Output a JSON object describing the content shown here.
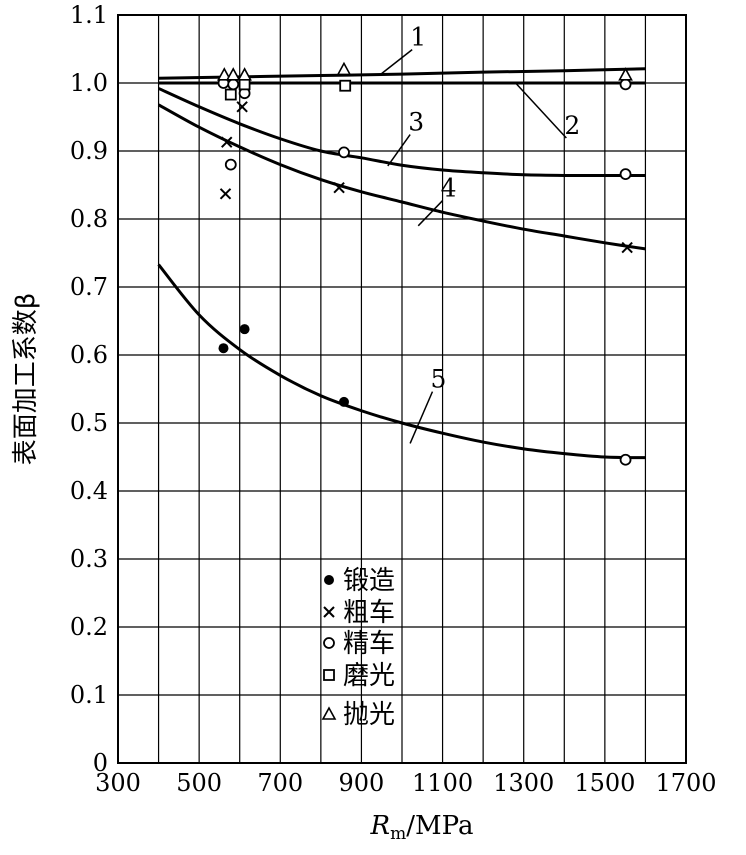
{
  "chart_data": {
    "type": "line",
    "ylabel": "表面加工系数β",
    "xlabel_main": "R",
    "xlabel_sub": "m",
    "xlabel_unit": "/MPa",
    "xlim": [
      300,
      1700
    ],
    "ylim": [
      0,
      1.1
    ],
    "grid": true,
    "x_ticks": [
      300,
      500,
      700,
      900,
      1100,
      1300,
      1500,
      1700
    ],
    "y_ticks": [
      0,
      0.1,
      0.2,
      0.3,
      0.4,
      0.5,
      0.6,
      0.7,
      0.8,
      0.9,
      1.0,
      1.1
    ],
    "x_tick_labels": [
      "300",
      "500",
      "700",
      "900",
      "1100",
      "1300",
      "1500",
      "1700"
    ],
    "y_tick_labels": [
      "0",
      "0.1",
      "0.2",
      "0.3",
      "0.4",
      "0.5",
      "0.6",
      "0.7",
      "0.8",
      "0.9",
      "1.0",
      "1.1"
    ],
    "series": [
      {
        "name": "1",
        "x": [
          400,
          600,
          800,
          1000,
          1200,
          1400,
          1600
        ],
        "y": [
          1.007,
          1.009,
          1.011,
          1.013,
          1.016,
          1.018,
          1.021
        ],
        "label_at": [
          1030,
          1.055
        ],
        "leader_to": [
          950,
          1.014
        ]
      },
      {
        "name": "2",
        "x": [
          400,
          600,
          800,
          1000,
          1200,
          1400,
          1600
        ],
        "y": [
          1.0,
          1.0,
          1.0,
          1.0,
          1.0,
          1.0,
          1.0
        ],
        "label_at": [
          1410,
          0.925
        ],
        "leader_to": [
          1280,
          1.0
        ]
      },
      {
        "name": "3",
        "x": [
          400,
          500,
          600,
          700,
          800,
          900,
          1000,
          1100,
          1200,
          1300,
          1400,
          1500,
          1600
        ],
        "y": [
          0.992,
          0.965,
          0.94,
          0.918,
          0.9,
          0.89,
          0.879,
          0.872,
          0.868,
          0.865,
          0.864,
          0.864,
          0.864
        ],
        "label_at": [
          1025,
          0.93
        ],
        "leader_to": [
          965,
          0.878
        ]
      },
      {
        "name": "4",
        "x": [
          400,
          500,
          600,
          700,
          800,
          900,
          1000,
          1100,
          1200,
          1300,
          1400,
          1500,
          1600
        ],
        "y": [
          0.968,
          0.935,
          0.906,
          0.88,
          0.858,
          0.84,
          0.825,
          0.81,
          0.797,
          0.785,
          0.775,
          0.765,
          0.756
        ],
        "label_at": [
          1105,
          0.833
        ],
        "leader_to": [
          1040,
          0.79
        ]
      },
      {
        "name": "5",
        "x": [
          400,
          500,
          600,
          700,
          800,
          900,
          1000,
          1100,
          1200,
          1300,
          1400,
          1500,
          1600
        ],
        "y": [
          0.733,
          0.659,
          0.608,
          0.57,
          0.54,
          0.518,
          0.5,
          0.485,
          0.472,
          0.462,
          0.455,
          0.45,
          0.449
        ],
        "label_at": [
          1080,
          0.552
        ],
        "leader_to": [
          1020,
          0.47
        ]
      }
    ],
    "markers": [
      {
        "name": "锻造",
        "symbol": "filled-circle",
        "points": [
          [
            560,
            0.61
          ],
          [
            612,
            0.638
          ],
          [
            857,
            0.531
          ]
        ]
      },
      {
        "name": "粗车",
        "symbol": "cross",
        "points": [
          [
            565,
            0.837
          ],
          [
            568,
            0.913
          ],
          [
            606,
            0.965
          ],
          [
            845,
            0.846
          ],
          [
            1555,
            0.758
          ]
        ]
      },
      {
        "name": "精车",
        "symbol": "open-circle",
        "points": [
          [
            560,
            1.0
          ],
          [
            578,
            0.88
          ],
          [
            584,
            0.998
          ],
          [
            612,
            0.985
          ],
          [
            857,
            0.898
          ],
          [
            1551,
            0.998
          ],
          [
            1551,
            0.866
          ],
          [
            1551,
            0.446
          ]
        ]
      },
      {
        "name": "磨光",
        "symbol": "open-square",
        "points": [
          [
            578,
            0.983
          ],
          [
            612,
            0.998
          ],
          [
            860,
            0.996
          ]
        ]
      },
      {
        "name": "抛光",
        "symbol": "open-triangle",
        "points": [
          [
            562,
            1.012
          ],
          [
            584,
            1.012
          ],
          [
            612,
            1.012
          ],
          [
            857,
            1.02
          ],
          [
            1551,
            1.012
          ]
        ]
      }
    ]
  }
}
